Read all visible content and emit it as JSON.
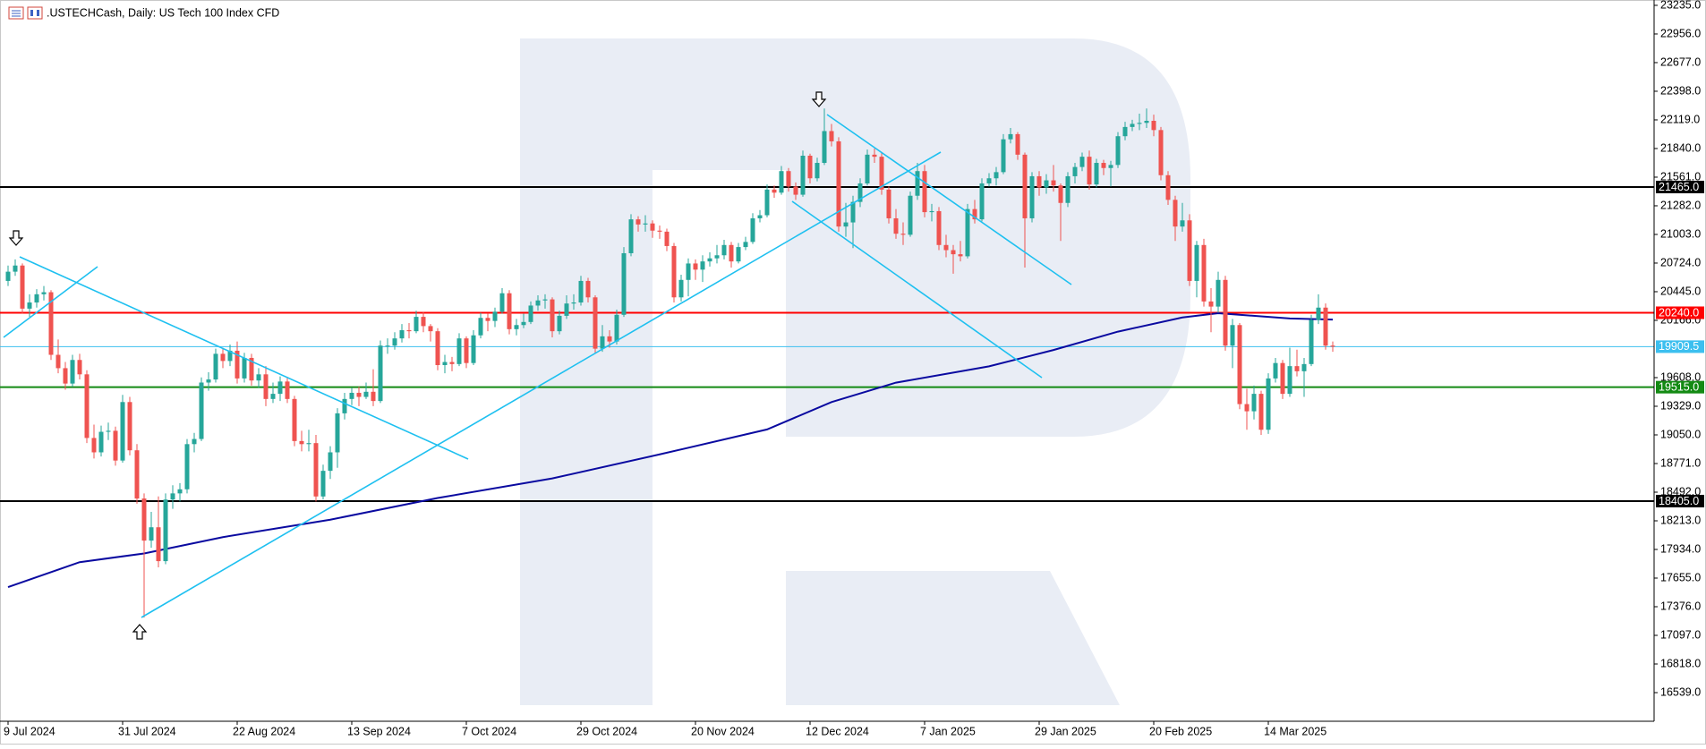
{
  "chart_data": {
    "type": "candlestick",
    "title": ".USTECHCash, Daily:  US Tech 100 Index CFD",
    "up_color": "#26a69a",
    "down_color": "#ef5350",
    "ylim": [
      16260,
      23287
    ],
    "yticks": [
      {
        "value": 23235,
        "label": "23235.0"
      },
      {
        "value": 22956,
        "label": "22956.0"
      },
      {
        "value": 22677,
        "label": "22677.0"
      },
      {
        "value": 22398,
        "label": "22398.0"
      },
      {
        "value": 22119,
        "label": "22119.0"
      },
      {
        "value": 21840,
        "label": "21840.0"
      },
      {
        "value": 21561,
        "label": "21561.0"
      },
      {
        "value": 21282,
        "label": "21282.0"
      },
      {
        "value": 21003,
        "label": "21003.0"
      },
      {
        "value": 20724,
        "label": "20724.0"
      },
      {
        "value": 20445,
        "label": "20445.0"
      },
      {
        "value": 20166,
        "label": "20166.0"
      },
      {
        "value": 19608,
        "label": "19608.0"
      },
      {
        "value": 19329,
        "label": "19329.0"
      },
      {
        "value": 19050,
        "label": "19050.0"
      },
      {
        "value": 18771,
        "label": "18771.0"
      },
      {
        "value": 18492,
        "label": "18492.0"
      },
      {
        "value": 18213,
        "label": "18213.0"
      },
      {
        "value": 17934,
        "label": "17934.0"
      },
      {
        "value": 17655,
        "label": "17655.0"
      },
      {
        "value": 17376,
        "label": "17376.0"
      },
      {
        "value": 17097,
        "label": "17097.0"
      },
      {
        "value": 16818,
        "label": "16818.0"
      },
      {
        "value": 16539,
        "label": "16539.0"
      }
    ],
    "levels": [
      {
        "value": 21465,
        "label": "21465.0",
        "color": "#000000"
      },
      {
        "value": 20240,
        "label": "20240.0",
        "color": "#ff0000"
      },
      {
        "value": 19909.5,
        "label": "19909.5",
        "color": "#3cbfef"
      },
      {
        "value": 19515,
        "label": "19515.0",
        "color": "#138a13"
      },
      {
        "value": 18405,
        "label": "18405.0",
        "color": "#000000"
      }
    ],
    "moving_average": {
      "color": "#0a0aa0",
      "x": [
        0,
        10,
        19,
        30,
        45,
        60,
        76,
        91,
        106,
        115,
        124,
        137,
        146,
        155,
        164,
        169,
        173,
        179,
        185
      ],
      "values": [
        17567,
        17810,
        17895,
        18054,
        18224,
        18435,
        18626,
        18860,
        19103,
        19370,
        19559,
        19718,
        19877,
        20056,
        20194,
        20236,
        20215,
        20184,
        20173
      ]
    },
    "categories": [
      "9 Jul 2024",
      null,
      null,
      null,
      null,
      null,
      null,
      null,
      null,
      null,
      null,
      null,
      null,
      null,
      null,
      null,
      "31 Jul 2024",
      null,
      null,
      null,
      null,
      null,
      null,
      null,
      null,
      null,
      null,
      null,
      null,
      null,
      null,
      null,
      "22 Aug 2024",
      null,
      null,
      null,
      null,
      null,
      null,
      null,
      null,
      null,
      null,
      null,
      null,
      null,
      null,
      null,
      "13 Sep 2024",
      null,
      null,
      null,
      null,
      null,
      null,
      null,
      null,
      null,
      null,
      null,
      null,
      null,
      null,
      null,
      "7 Oct 2024",
      null,
      null,
      null,
      null,
      null,
      null,
      null,
      null,
      null,
      null,
      null,
      null,
      null,
      null,
      null,
      "29 Oct 2024",
      null,
      null,
      null,
      null,
      null,
      null,
      null,
      null,
      null,
      null,
      null,
      null,
      null,
      null,
      null,
      "20 Nov 2024",
      null,
      null,
      null,
      null,
      null,
      null,
      null,
      null,
      null,
      null,
      null,
      null,
      null,
      null,
      null,
      "12 Dec 2024",
      null,
      null,
      null,
      null,
      null,
      null,
      null,
      null,
      null,
      null,
      null,
      null,
      null,
      null,
      null,
      "7 Jan 2025",
      null,
      null,
      null,
      null,
      null,
      null,
      null,
      null,
      null,
      null,
      null,
      null,
      null,
      null,
      null,
      "29 Jan 2025",
      null,
      null,
      null,
      null,
      null,
      null,
      null,
      null,
      null,
      null,
      null,
      null,
      null,
      null,
      null,
      "20 Feb 2025",
      null,
      null,
      null,
      null,
      null,
      null,
      null,
      null,
      null,
      null,
      null,
      null,
      null,
      null,
      null,
      "14 Mar 2025",
      null,
      null,
      null,
      null,
      null,
      null,
      null,
      null,
      null
    ],
    "ohlc": [
      [
        20550,
        20700,
        20500,
        20640
      ],
      [
        20640,
        20760,
        20600,
        20700
      ],
      [
        20700,
        20720,
        20230,
        20280
      ],
      [
        20280,
        20420,
        20200,
        20340
      ],
      [
        20340,
        20470,
        20290,
        20420
      ],
      [
        20420,
        20500,
        20360,
        20440
      ],
      [
        20440,
        20460,
        19780,
        19830
      ],
      [
        19830,
        19980,
        19650,
        19700
      ],
      [
        19700,
        19760,
        19490,
        19550
      ],
      [
        19550,
        19830,
        19520,
        19780
      ],
      [
        19780,
        19840,
        19590,
        19640
      ],
      [
        19640,
        19680,
        18970,
        19020
      ],
      [
        19020,
        19150,
        18820,
        18880
      ],
      [
        18880,
        19140,
        18840,
        19080
      ],
      [
        19080,
        19170,
        19000,
        19090
      ],
      [
        19090,
        19130,
        18750,
        18800
      ],
      [
        18800,
        19440,
        18780,
        19370
      ],
      [
        19370,
        19420,
        18850,
        18900
      ],
      [
        18900,
        18960,
        18380,
        18430
      ],
      [
        18430,
        18480,
        17270,
        18020
      ],
      [
        18020,
        18300,
        17950,
        18150
      ],
      [
        18150,
        18450,
        17760,
        17820
      ],
      [
        17820,
        18480,
        17790,
        18420
      ],
      [
        18420,
        18560,
        18330,
        18480
      ],
      [
        18480,
        18580,
        18400,
        18520
      ],
      [
        18520,
        19010,
        18480,
        18960
      ],
      [
        18960,
        19070,
        18880,
        19010
      ],
      [
        19010,
        19610,
        18990,
        19560
      ],
      [
        19560,
        19660,
        19480,
        19590
      ],
      [
        19590,
        19890,
        19560,
        19840
      ],
      [
        19840,
        19900,
        19700,
        19770
      ],
      [
        19770,
        19930,
        19720,
        19870
      ],
      [
        19870,
        19960,
        19550,
        19600
      ],
      [
        19600,
        19850,
        19560,
        19800
      ],
      [
        19800,
        19840,
        19530,
        19580
      ],
      [
        19580,
        19700,
        19510,
        19640
      ],
      [
        19640,
        19720,
        19330,
        19400
      ],
      [
        19400,
        19560,
        19360,
        19450
      ],
      [
        19450,
        19620,
        19380,
        19570
      ],
      [
        19570,
        19610,
        19360,
        19400
      ],
      [
        19400,
        19430,
        18940,
        18990
      ],
      [
        18990,
        19090,
        18890,
        18960
      ],
      [
        18960,
        19100,
        18890,
        18970
      ],
      [
        18970,
        19050,
        18400,
        18450
      ],
      [
        18450,
        18760,
        18420,
        18700
      ],
      [
        18700,
        18940,
        18620,
        18880
      ],
      [
        18880,
        19310,
        18730,
        19260
      ],
      [
        19260,
        19460,
        19200,
        19400
      ],
      [
        19400,
        19510,
        19340,
        19460
      ],
      [
        19460,
        19520,
        19330,
        19420
      ],
      [
        19420,
        19560,
        19400,
        19470
      ],
      [
        19470,
        19690,
        19330,
        19380
      ],
      [
        19380,
        19970,
        19360,
        19920
      ],
      [
        19920,
        19990,
        19840,
        19920
      ],
      [
        19920,
        20050,
        19880,
        19990
      ],
      [
        19990,
        20130,
        19950,
        20070
      ],
      [
        20070,
        20140,
        19990,
        20060
      ],
      [
        20060,
        20260,
        20040,
        20200
      ],
      [
        20200,
        20250,
        20050,
        20110
      ],
      [
        20110,
        20130,
        19960,
        20060
      ],
      [
        20060,
        20090,
        19680,
        19730
      ],
      [
        19730,
        19830,
        19650,
        19760
      ],
      [
        19760,
        19810,
        19670,
        19740
      ],
      [
        19740,
        20040,
        19720,
        19990
      ],
      [
        19990,
        20010,
        19700,
        19750
      ],
      [
        19750,
        20070,
        19730,
        20020
      ],
      [
        20020,
        20240,
        19990,
        20190
      ],
      [
        20190,
        20230,
        20060,
        20160
      ],
      [
        20160,
        20290,
        20100,
        20250
      ],
      [
        20250,
        20480,
        20230,
        20430
      ],
      [
        20430,
        20460,
        20030,
        20080
      ],
      [
        20080,
        20180,
        20020,
        20120
      ],
      [
        20120,
        20230,
        20090,
        20150
      ],
      [
        20150,
        20350,
        20130,
        20310
      ],
      [
        20310,
        20410,
        20260,
        20360
      ],
      [
        20360,
        20420,
        20280,
        20370
      ],
      [
        20370,
        20390,
        20000,
        20060
      ],
      [
        20060,
        20260,
        20030,
        20210
      ],
      [
        20210,
        20410,
        20180,
        20330
      ],
      [
        20330,
        20420,
        20270,
        20340
      ],
      [
        20340,
        20600,
        20310,
        20550
      ],
      [
        20550,
        20580,
        20340,
        20390
      ],
      [
        20390,
        20410,
        19840,
        19890
      ],
      [
        19890,
        20120,
        19860,
        20010
      ],
      [
        20010,
        20070,
        19900,
        19960
      ],
      [
        19960,
        20270,
        19930,
        20220
      ],
      [
        20220,
        20880,
        20200,
        20820
      ],
      [
        20820,
        21200,
        20790,
        21150
      ],
      [
        21150,
        21180,
        21030,
        21100
      ],
      [
        21100,
        21190,
        21030,
        21110
      ],
      [
        21110,
        21140,
        20970,
        21040
      ],
      [
        21040,
        21090,
        20960,
        21030
      ],
      [
        21030,
        21060,
        20840,
        20890
      ],
      [
        20890,
        20920,
        20340,
        20390
      ],
      [
        20390,
        20610,
        20350,
        20560
      ],
      [
        20560,
        20770,
        20400,
        20720
      ],
      [
        20720,
        20760,
        20560,
        20660
      ],
      [
        20660,
        20800,
        20540,
        20740
      ],
      [
        20740,
        20830,
        20690,
        20770
      ],
      [
        20770,
        20900,
        20720,
        20800
      ],
      [
        20800,
        20950,
        20760,
        20900
      ],
      [
        20900,
        20930,
        20680,
        20740
      ],
      [
        20740,
        20920,
        20720,
        20880
      ],
      [
        20880,
        20980,
        20850,
        20930
      ],
      [
        20930,
        21210,
        20910,
        21160
      ],
      [
        21160,
        21240,
        21120,
        21190
      ],
      [
        21190,
        21490,
        21170,
        21440
      ],
      [
        21440,
        21480,
        21360,
        21410
      ],
      [
        21410,
        21670,
        21390,
        21620
      ],
      [
        21620,
        21650,
        21420,
        21470
      ],
      [
        21470,
        21510,
        21340,
        21390
      ],
      [
        21390,
        21820,
        21370,
        21770
      ],
      [
        21770,
        21790,
        21500,
        21550
      ],
      [
        21550,
        21750,
        21520,
        21700
      ],
      [
        21700,
        22230,
        21680,
        22010
      ],
      [
        22010,
        22080,
        21860,
        21910
      ],
      [
        21910,
        21950,
        21030,
        21080
      ],
      [
        21080,
        21310,
        20980,
        21120
      ],
      [
        21120,
        21380,
        20870,
        21320
      ],
      [
        21320,
        21550,
        21270,
        21500
      ],
      [
        21500,
        21830,
        21480,
        21780
      ],
      [
        21780,
        21840,
        21700,
        21760
      ],
      [
        21760,
        21800,
        21390,
        21440
      ],
      [
        21440,
        21470,
        21110,
        21160
      ],
      [
        21160,
        21250,
        20960,
        21010
      ],
      [
        21010,
        21120,
        20900,
        21000
      ],
      [
        21000,
        21420,
        20980,
        21380
      ],
      [
        21380,
        21700,
        21340,
        21620
      ],
      [
        21620,
        21680,
        21170,
        21220
      ],
      [
        21220,
        21300,
        21130,
        21230
      ],
      [
        21230,
        21270,
        20850,
        20900
      ],
      [
        20900,
        21000,
        20780,
        20850
      ],
      [
        20850,
        20900,
        20620,
        20810
      ],
      [
        20810,
        20940,
        20740,
        20790
      ],
      [
        20790,
        21300,
        20770,
        21250
      ],
      [
        21250,
        21340,
        21110,
        21150
      ],
      [
        21150,
        21550,
        21130,
        21500
      ],
      [
        21500,
        21600,
        21470,
        21550
      ],
      [
        21550,
        21660,
        21480,
        21610
      ],
      [
        21610,
        21980,
        21590,
        21930
      ],
      [
        21930,
        22040,
        21890,
        21980
      ],
      [
        21980,
        22000,
        21730,
        21780
      ],
      [
        21780,
        21800,
        20680,
        21160
      ],
      [
        21160,
        21610,
        21120,
        21570
      ],
      [
        21570,
        21620,
        21380,
        21460
      ],
      [
        21460,
        21590,
        21400,
        21530
      ],
      [
        21530,
        21680,
        21420,
        21480
      ],
      [
        21480,
        21500,
        20940,
        21310
      ],
      [
        21310,
        21610,
        21270,
        21570
      ],
      [
        21570,
        21700,
        21500,
        21660
      ],
      [
        21660,
        21800,
        21620,
        21760
      ],
      [
        21760,
        21820,
        21440,
        21490
      ],
      [
        21490,
        21740,
        21460,
        21700
      ],
      [
        21700,
        21730,
        21580,
        21650
      ],
      [
        21650,
        21720,
        21470,
        21680
      ],
      [
        21680,
        22000,
        21650,
        21960
      ],
      [
        21960,
        22100,
        21920,
        22050
      ],
      [
        22050,
        22120,
        22010,
        22080
      ],
      [
        22080,
        22180,
        22020,
        22090
      ],
      [
        22090,
        22230,
        22040,
        22110
      ],
      [
        22110,
        22170,
        21960,
        22020
      ],
      [
        22020,
        22050,
        21530,
        21580
      ],
      [
        21580,
        21620,
        21290,
        21340
      ],
      [
        21340,
        21380,
        20940,
        21080
      ],
      [
        21080,
        21310,
        21030,
        21140
      ],
      [
        21140,
        21200,
        20500,
        20550
      ],
      [
        20550,
        20940,
        20390,
        20900
      ],
      [
        20900,
        20960,
        20300,
        20350
      ],
      [
        20350,
        20480,
        20050,
        20300
      ],
      [
        20300,
        20640,
        20240,
        20560
      ],
      [
        20560,
        20600,
        19870,
        19920
      ],
      [
        19920,
        20180,
        19700,
        20120
      ],
      [
        20120,
        20140,
        19300,
        19350
      ],
      [
        19350,
        19500,
        19100,
        19280
      ],
      [
        19280,
        19530,
        19200,
        19450
      ],
      [
        19450,
        19480,
        19050,
        19100
      ],
      [
        19100,
        19650,
        19060,
        19600
      ],
      [
        19600,
        19800,
        19560,
        19750
      ],
      [
        19750,
        19780,
        19400,
        19450
      ],
      [
        19450,
        19900,
        19420,
        19720
      ],
      [
        19720,
        19880,
        19620,
        19670
      ],
      [
        19670,
        19800,
        19420,
        19740
      ],
      [
        19740,
        20220,
        19720,
        20170
      ],
      [
        20170,
        20420,
        20130,
        20290
      ],
      [
        20290,
        20330,
        19880,
        19920
      ],
      [
        19920,
        19960,
        19860,
        19909.5
      ]
    ]
  }
}
